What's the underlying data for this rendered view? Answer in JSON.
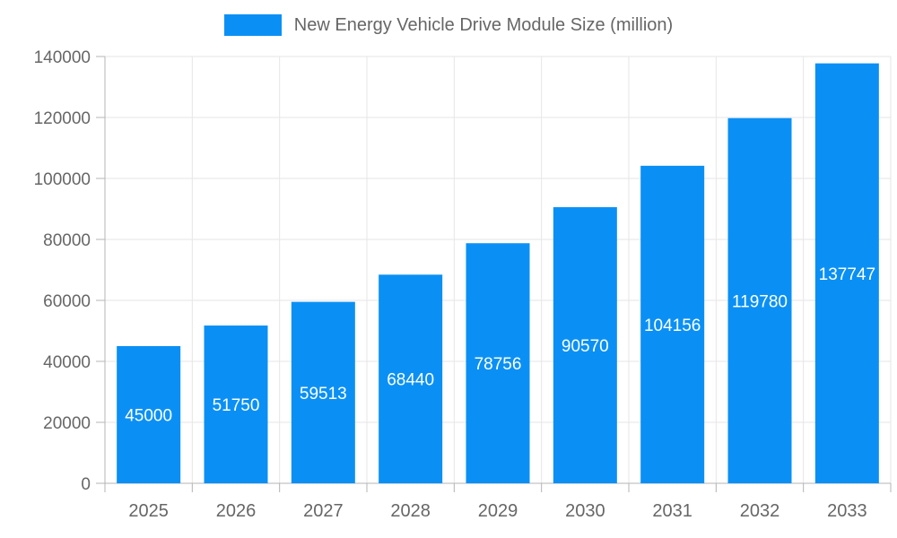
{
  "chart_data": {
    "type": "bar",
    "title": "New Energy Vehicle Drive Module Size (million)",
    "categories": [
      "2025",
      "2026",
      "2027",
      "2028",
      "2029",
      "2030",
      "2031",
      "2032",
      "2033"
    ],
    "values": [
      45000,
      51750,
      59513,
      68440,
      78756,
      90570,
      104156,
      119780,
      137747
    ],
    "xlabel": "",
    "ylabel": "",
    "ylim": [
      0,
      140000
    ],
    "ytick_step": 20000,
    "ytick_labels": [
      "0",
      "20000",
      "40000",
      "60000",
      "80000",
      "100000",
      "120000",
      "140000"
    ],
    "grid": true,
    "legend_position": "top",
    "colors": {
      "bar": "#0a90f5",
      "bar_label": "#ffffff",
      "axis_text": "#666666",
      "grid_line": "#e6e6e6",
      "axis_line": "#b4b4b4",
      "background": "#ffffff"
    }
  }
}
